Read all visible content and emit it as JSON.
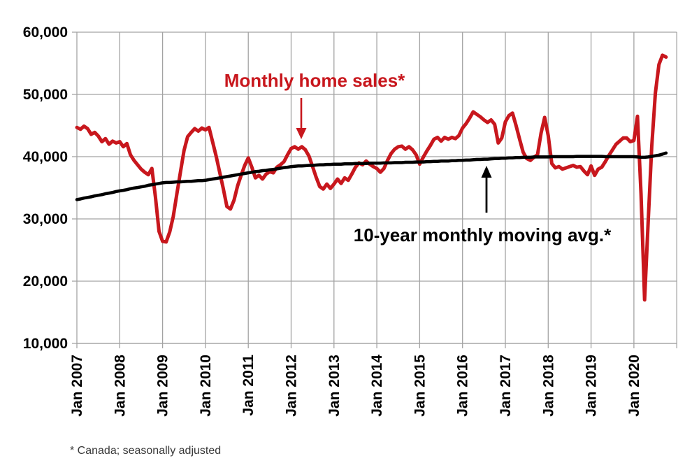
{
  "page": {
    "background": "#ffffff"
  },
  "annotations": {
    "red_label": "Monthly home sales*",
    "black_label": "10-year monthly moving avg.*",
    "footnote": "* Canada; seasonally adjusted"
  },
  "colors": {
    "red": "#c8171d",
    "black": "#000000",
    "grid": "#a3a3a3",
    "axis_text": "#000000",
    "footnote_text": "#383838",
    "background": "#ffffff"
  },
  "chart_data": {
    "type": "line",
    "title": "",
    "grid": true,
    "x_axis": {
      "tick_labels": [
        "Jan 2007",
        "Jan 2008",
        "Jan 2009",
        "Jan 2010",
        "Jan 2011",
        "Jan 2012",
        "Jan 2013",
        "Jan 2014",
        "Jan 2015",
        "Jan 2016",
        "Jan 2017",
        "Jan 2018",
        "Jan 2019",
        "Jan 2020"
      ],
      "start": "Jan 2007",
      "end": "Oct 2020",
      "frequency": "monthly"
    },
    "y_axis": {
      "ticks": [
        10000,
        20000,
        30000,
        40000,
        50000,
        60000
      ],
      "tick_labels": [
        "10,000",
        "20,000",
        "30,000",
        "40,000",
        "50,000",
        "60,000"
      ],
      "ylim": [
        10000,
        60000
      ]
    },
    "series": [
      {
        "name": "Monthly home sales",
        "color": "#c8171d",
        "start_month": "2007-01",
        "values": [
          44700,
          44400,
          44900,
          44500,
          43600,
          43900,
          43300,
          42400,
          42900,
          42000,
          42500,
          42200,
          42400,
          41600,
          42100,
          40300,
          39400,
          38700,
          38000,
          37500,
          37100,
          38100,
          33500,
          28000,
          26400,
          26300,
          27900,
          30400,
          34000,
          37500,
          41000,
          43200,
          43900,
          44500,
          44100,
          44600,
          44300,
          44700,
          42400,
          40100,
          37500,
          34900,
          32000,
          31600,
          33000,
          35300,
          37000,
          38600,
          39800,
          38300,
          36600,
          37000,
          36400,
          37200,
          37600,
          37400,
          38300,
          38700,
          39200,
          40300,
          41300,
          41600,
          41200,
          41600,
          41100,
          40100,
          38400,
          36700,
          35200,
          34800,
          35600,
          34900,
          35600,
          36400,
          35700,
          36600,
          36200,
          37200,
          38300,
          39000,
          38700,
          39300,
          38800,
          38400,
          38100,
          37500,
          38100,
          39400,
          40500,
          41200,
          41600,
          41700,
          41200,
          41600,
          41100,
          40300,
          38800,
          39900,
          40900,
          41800,
          42800,
          43100,
          42500,
          43100,
          42800,
          43100,
          42900,
          43400,
          44600,
          45300,
          46200,
          47200,
          46800,
          46400,
          45900,
          45500,
          45900,
          45200,
          42200,
          43000,
          45600,
          46600,
          47000,
          45000,
          42800,
          40700,
          39700,
          39400,
          39900,
          40300,
          43800,
          46300,
          43400,
          38900,
          38200,
          38400,
          38000,
          38200,
          38400,
          38600,
          38300,
          38400,
          37700,
          37100,
          38500,
          37000,
          38000,
          38300,
          39200,
          40200,
          41100,
          42000,
          42500,
          43000,
          43000,
          42400,
          42600,
          46500,
          34000,
          17000,
          29500,
          41600,
          50200,
          54800,
          56300,
          56000
        ]
      },
      {
        "name": "10-year monthly moving avg",
        "color": "#000000",
        "start_month": "2007-01",
        "values": [
          33100,
          33200,
          33350,
          33450,
          33550,
          33700,
          33800,
          33900,
          34050,
          34150,
          34250,
          34400,
          34500,
          34600,
          34700,
          34850,
          34950,
          35050,
          35150,
          35250,
          35400,
          35500,
          35600,
          35700,
          35800,
          35850,
          35850,
          35900,
          35950,
          35950,
          36000,
          36050,
          36050,
          36100,
          36150,
          36150,
          36200,
          36300,
          36400,
          36500,
          36600,
          36700,
          36800,
          36900,
          37000,
          37100,
          37200,
          37300,
          37400,
          37500,
          37600,
          37650,
          37750,
          37800,
          37900,
          37950,
          38050,
          38150,
          38250,
          38300,
          38400,
          38450,
          38500,
          38500,
          38550,
          38600,
          38600,
          38650,
          38700,
          38700,
          38750,
          38750,
          38800,
          38800,
          38800,
          38850,
          38850,
          38850,
          38900,
          38900,
          38900,
          38900,
          38950,
          38950,
          38950,
          38950,
          39000,
          39000,
          39000,
          39050,
          39050,
          39050,
          39100,
          39100,
          39100,
          39150,
          39150,
          39150,
          39200,
          39200,
          39250,
          39250,
          39300,
          39300,
          39300,
          39350,
          39350,
          39400,
          39400,
          39450,
          39450,
          39500,
          39550,
          39550,
          39600,
          39600,
          39650,
          39700,
          39700,
          39750,
          39750,
          39800,
          39800,
          39850,
          39850,
          39900,
          39900,
          39900,
          39950,
          39950,
          39950,
          39950,
          39950,
          40000,
          40000,
          40000,
          40000,
          40000,
          40000,
          40000,
          40050,
          40050,
          40050,
          40050,
          40050,
          40050,
          40050,
          40050,
          40000,
          40000,
          40000,
          40000,
          40000,
          40000,
          40000,
          40000,
          40000,
          39950,
          39900,
          39900,
          39950,
          40050,
          40150,
          40250,
          40400,
          40600
        ]
      }
    ]
  }
}
